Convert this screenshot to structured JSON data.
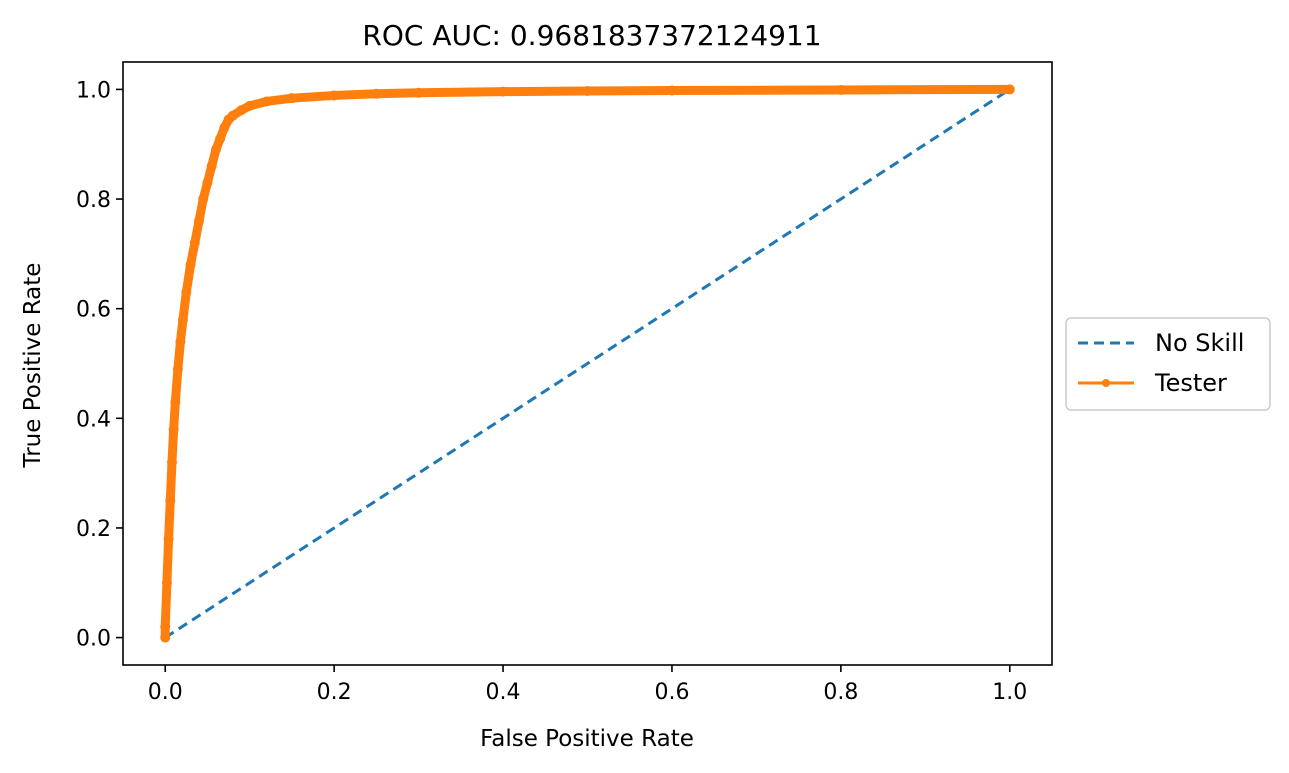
{
  "chart_data": {
    "type": "line",
    "title": "ROC AUC: 0.9681837372124911",
    "xlabel": "False Positive Rate",
    "ylabel": "True Positive Rate",
    "xlim": [
      -0.05,
      1.05
    ],
    "ylim": [
      -0.05,
      1.05
    ],
    "xticks": [
      0.0,
      0.2,
      0.4,
      0.6,
      0.8,
      1.0
    ],
    "xtick_labels": [
      "0.0",
      "0.2",
      "0.4",
      "0.6",
      "0.8",
      "1.0"
    ],
    "yticks": [
      0.0,
      0.2,
      0.4,
      0.6,
      0.8,
      1.0
    ],
    "ytick_labels": [
      "0.0",
      "0.2",
      "0.4",
      "0.6",
      "0.8",
      "1.0"
    ],
    "grid": false,
    "legend_position": "outside right, center",
    "series": [
      {
        "name": "No Skill",
        "style": "dashed",
        "marker": "none",
        "color": "#1f77b4",
        "x": [
          0.0,
          1.0
        ],
        "y": [
          0.0,
          1.0
        ]
      },
      {
        "name": "Tester",
        "style": "solid",
        "marker": "dot",
        "color": "#ff7f0e",
        "x": [
          0.0,
          0.0,
          0.002,
          0.004,
          0.006,
          0.008,
          0.01,
          0.012,
          0.015,
          0.018,
          0.021,
          0.025,
          0.03,
          0.035,
          0.04,
          0.045,
          0.05,
          0.055,
          0.06,
          0.065,
          0.07,
          0.075,
          0.08,
          0.09,
          0.1,
          0.12,
          0.15,
          0.2,
          0.25,
          0.3,
          0.4,
          0.5,
          0.6,
          0.8,
          1.0
        ],
        "y": [
          0.0,
          0.02,
          0.1,
          0.18,
          0.25,
          0.32,
          0.38,
          0.43,
          0.49,
          0.54,
          0.58,
          0.63,
          0.68,
          0.72,
          0.76,
          0.8,
          0.83,
          0.86,
          0.89,
          0.91,
          0.93,
          0.945,
          0.952,
          0.962,
          0.97,
          0.978,
          0.984,
          0.989,
          0.992,
          0.994,
          0.996,
          0.997,
          0.998,
          0.999,
          1.0
        ]
      }
    ]
  }
}
